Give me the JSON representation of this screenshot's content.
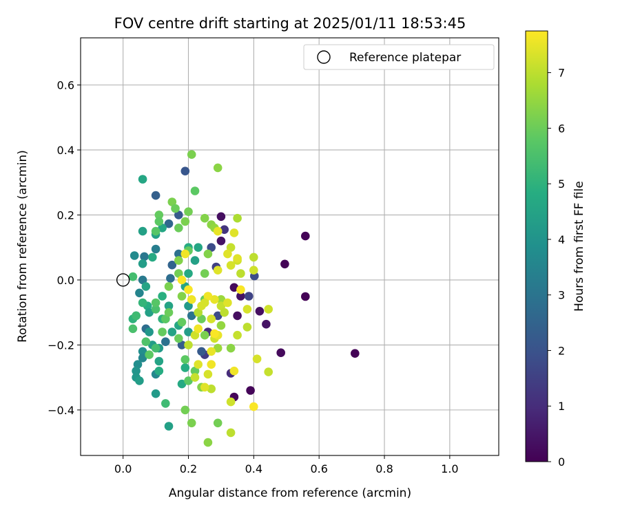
{
  "chart_data": {
    "type": "scatter",
    "title": "FOV centre drift starting at 2025/01/11 18:53:45",
    "xlabel": "Angular distance from reference (arcmin)",
    "ylabel": "Rotation from reference (arcmin)",
    "xlim": [
      -0.13,
      1.15
    ],
    "ylim": [
      -0.54,
      0.745
    ],
    "xticks": [
      0.0,
      0.2,
      0.4,
      0.6,
      0.8,
      1.0
    ],
    "xtick_labels": [
      "0.0",
      "0.2",
      "0.4",
      "0.6",
      "0.8",
      "1.0"
    ],
    "yticks": [
      -0.4,
      -0.2,
      0.0,
      0.2,
      0.4,
      0.6
    ],
    "ytick_labels": [
      "−0.4",
      "−0.2",
      "0.0",
      "0.2",
      "0.4",
      "0.6"
    ],
    "grid": true,
    "legend": {
      "position": "top-right",
      "label": "Reference platepar"
    },
    "reference_point": {
      "x": 0.0,
      "y": 0.0
    },
    "colorbar": {
      "label": "Hours from first FF file",
      "min": 0,
      "max": 7.75,
      "ticks": [
        0,
        1,
        2,
        3,
        4,
        5,
        6,
        7
      ],
      "tick_labels": [
        "0",
        "1",
        "2",
        "3",
        "4",
        "5",
        "6",
        "7"
      ],
      "colormap": "viridis"
    },
    "points": [
      [
        0.71,
        -0.226,
        0.05
      ],
      [
        0.558,
        0.135,
        0.05
      ],
      [
        0.558,
        -0.051,
        0.05
      ],
      [
        0.495,
        0.049,
        0.05
      ],
      [
        0.483,
        -0.224,
        0.2
      ],
      [
        0.418,
        -0.096,
        0.3
      ],
      [
        0.438,
        -0.136,
        0.4
      ],
      [
        0.39,
        -0.34,
        0.1
      ],
      [
        0.34,
        -0.36,
        0.1
      ],
      [
        0.34,
        -0.023,
        0.2
      ],
      [
        0.36,
        -0.05,
        0.4
      ],
      [
        0.3,
        0.195,
        0.3
      ],
      [
        0.31,
        0.155,
        1.2
      ],
      [
        0.3,
        0.12,
        0.4
      ],
      [
        0.35,
        -0.11,
        0.3
      ],
      [
        0.33,
        -0.287,
        1.0
      ],
      [
        0.385,
        -0.05,
        1.6
      ],
      [
        0.402,
        0.012,
        1.8
      ],
      [
        0.285,
        0.04,
        1.5
      ],
      [
        0.27,
        0.1,
        1.8
      ],
      [
        0.26,
        -0.16,
        1.0
      ],
      [
        0.29,
        -0.11,
        1.8
      ],
      [
        0.25,
        -0.23,
        1.4
      ],
      [
        0.24,
        -0.22,
        2.2
      ],
      [
        0.19,
        0.335,
        2.1
      ],
      [
        0.1,
        0.26,
        2.4
      ],
      [
        0.14,
        0.173,
        2.6
      ],
      [
        0.17,
        0.2,
        2.2
      ],
      [
        0.15,
        0.046,
        2.5
      ],
      [
        0.145,
        0.005,
        2.8
      ],
      [
        0.13,
        -0.12,
        2.8
      ],
      [
        0.13,
        -0.19,
        2.9
      ],
      [
        0.18,
        -0.2,
        2.3
      ],
      [
        0.17,
        0.08,
        2.9
      ],
      [
        0.21,
        -0.11,
        3.0
      ],
      [
        0.07,
        -0.15,
        2.8
      ],
      [
        0.06,
        0.0,
        3.2
      ],
      [
        0.065,
        0.072,
        3.1
      ],
      [
        0.1,
        0.095,
        3.3
      ],
      [
        0.05,
        -0.04,
        3.5
      ],
      [
        0.035,
        0.075,
        3.7
      ],
      [
        0.04,
        -0.11,
        3.6
      ],
      [
        0.06,
        -0.22,
        3.8
      ],
      [
        0.06,
        -0.24,
        3.6
      ],
      [
        0.045,
        -0.26,
        3.8
      ],
      [
        0.04,
        -0.28,
        4.0
      ],
      [
        0.04,
        -0.3,
        4.1
      ],
      [
        0.05,
        -0.31,
        4.3
      ],
      [
        0.1,
        -0.29,
        3.6
      ],
      [
        0.1,
        -0.35,
        4.2
      ],
      [
        0.06,
        0.31,
        4.6
      ],
      [
        0.06,
        0.15,
        4.4
      ],
      [
        0.06,
        0.05,
        4.3
      ],
      [
        0.1,
        0.14,
        4.4
      ],
      [
        0.12,
        0.16,
        4.6
      ],
      [
        0.09,
        0.07,
        4.7
      ],
      [
        0.07,
        -0.02,
        4.5
      ],
      [
        0.075,
        -0.08,
        4.8
      ],
      [
        0.08,
        -0.1,
        4.4
      ],
      [
        0.08,
        -0.16,
        4.1
      ],
      [
        0.09,
        -0.2,
        4.3
      ],
      [
        0.11,
        -0.21,
        4.2
      ],
      [
        0.11,
        -0.25,
        4.5
      ],
      [
        0.11,
        -0.28,
        4.8
      ],
      [
        0.13,
        -0.38,
        5.3
      ],
      [
        0.14,
        -0.45,
        4.4
      ],
      [
        0.18,
        -0.32,
        4.7
      ],
      [
        0.19,
        -0.27,
        4.8
      ],
      [
        0.2,
        -0.16,
        4.3
      ],
      [
        0.2,
        -0.08,
        4.2
      ],
      [
        0.19,
        -0.02,
        4.5
      ],
      [
        0.2,
        0.02,
        4.7
      ],
      [
        0.22,
        0.06,
        4.4
      ],
      [
        0.2,
        0.1,
        4.8
      ],
      [
        0.23,
        0.1,
        4.6
      ],
      [
        0.17,
        -0.14,
        4.6
      ],
      [
        0.14,
        -0.08,
        4.5
      ],
      [
        0.12,
        -0.05,
        4.9
      ],
      [
        0.15,
        -0.16,
        4.5
      ],
      [
        0.12,
        -0.12,
        5.0
      ],
      [
        0.03,
        -0.12,
        5.0
      ],
      [
        0.03,
        0.01,
        5.4
      ],
      [
        0.03,
        -0.15,
        5.5
      ],
      [
        0.04,
        -0.11,
        5.3
      ],
      [
        0.06,
        -0.07,
        5.1
      ],
      [
        0.07,
        -0.19,
        5.6
      ],
      [
        0.08,
        -0.23,
        5.8
      ],
      [
        0.1,
        -0.21,
        5.4
      ],
      [
        0.1,
        -0.09,
        5.5
      ],
      [
        0.1,
        -0.07,
        5.7
      ],
      [
        0.1,
        0.15,
        5.7
      ],
      [
        0.11,
        0.2,
        5.9
      ],
      [
        0.11,
        0.18,
        5.8
      ],
      [
        0.12,
        -0.16,
        5.9
      ],
      [
        0.13,
        -0.12,
        5.8
      ],
      [
        0.14,
        -0.02,
        6.2
      ],
      [
        0.14,
        -0.1,
        6.0
      ],
      [
        0.15,
        0.24,
        6.2
      ],
      [
        0.16,
        0.22,
        6.0
      ],
      [
        0.17,
        0.16,
        6.0
      ],
      [
        0.19,
        0.18,
        6.2
      ],
      [
        0.2,
        0.21,
        6.1
      ],
      [
        0.21,
        0.386,
        6.2
      ],
      [
        0.22,
        0.274,
        5.8
      ],
      [
        0.2,
        0.09,
        5.9
      ],
      [
        0.17,
        0.06,
        6.3
      ],
      [
        0.17,
        0.02,
        6.1
      ],
      [
        0.18,
        -0.05,
        6.3
      ],
      [
        0.18,
        -0.13,
        5.9
      ],
      [
        0.17,
        -0.18,
        6.0
      ],
      [
        0.19,
        -0.4,
        6.1
      ],
      [
        0.21,
        -0.44,
        6.2
      ],
      [
        0.26,
        -0.5,
        6.4
      ],
      [
        0.29,
        -0.44,
        6.1
      ],
      [
        0.19,
        -0.245,
        5.8
      ],
      [
        0.2,
        -0.31,
        5.8
      ],
      [
        0.22,
        -0.28,
        5.9
      ],
      [
        0.24,
        -0.33,
        6.3
      ],
      [
        0.25,
        -0.17,
        6.2
      ],
      [
        0.24,
        -0.12,
        6.0
      ],
      [
        0.25,
        -0.06,
        5.9
      ],
      [
        0.25,
        0.02,
        6.1
      ],
      [
        0.26,
        0.08,
        6.3
      ],
      [
        0.27,
        0.17,
        6.4
      ],
      [
        0.25,
        0.19,
        6.3
      ],
      [
        0.28,
        0.16,
        6.5
      ],
      [
        0.29,
        0.345,
        6.4
      ],
      [
        0.3,
        -0.06,
        6.6
      ],
      [
        0.3,
        -0.14,
        6.5
      ],
      [
        0.29,
        -0.21,
        6.6
      ],
      [
        0.33,
        -0.21,
        6.4
      ],
      [
        0.35,
        0.19,
        6.8
      ],
      [
        0.34,
        0.145,
        7.4
      ],
      [
        0.33,
        0.1,
        7.1
      ],
      [
        0.32,
        0.08,
        7.4
      ],
      [
        0.35,
        0.06,
        7.2
      ],
      [
        0.36,
        0.02,
        7.0
      ],
      [
        0.33,
        0.045,
        7.3
      ],
      [
        0.3,
        -0.08,
        7.1
      ],
      [
        0.32,
        -0.07,
        7.4
      ],
      [
        0.31,
        -0.1,
        7.0
      ],
      [
        0.27,
        -0.12,
        7.3
      ],
      [
        0.28,
        -0.06,
        7.5
      ],
      [
        0.26,
        -0.05,
        7.6
      ],
      [
        0.25,
        -0.07,
        7.3
      ],
      [
        0.23,
        -0.1,
        6.9
      ],
      [
        0.22,
        -0.17,
        7.2
      ],
      [
        0.2,
        -0.2,
        7.0
      ],
      [
        0.22,
        -0.3,
        7.1
      ],
      [
        0.23,
        -0.26,
        7.4
      ],
      [
        0.26,
        -0.29,
        7.3
      ],
      [
        0.27,
        -0.335,
        7.0
      ],
      [
        0.25,
        -0.33,
        7.4
      ],
      [
        0.27,
        -0.26,
        7.6
      ],
      [
        0.28,
        -0.18,
        7.2
      ],
      [
        0.29,
        -0.17,
        7.5
      ],
      [
        0.34,
        -0.28,
        7.6
      ],
      [
        0.33,
        -0.375,
        7.2
      ],
      [
        0.33,
        -0.47,
        7.0
      ],
      [
        0.35,
        -0.17,
        7.1
      ],
      [
        0.38,
        -0.09,
        7.3
      ],
      [
        0.38,
        -0.145,
        7.0
      ],
      [
        0.4,
        0.07,
        7.0
      ],
      [
        0.4,
        0.03,
        7.2
      ],
      [
        0.41,
        -0.243,
        7.3
      ],
      [
        0.445,
        -0.283,
        7.1
      ],
      [
        0.445,
        -0.09,
        7.2
      ],
      [
        0.4,
        -0.39,
        7.7
      ],
      [
        0.35,
        0.066,
        7.4
      ],
      [
        0.21,
        -0.06,
        7.6
      ],
      [
        0.19,
        0.08,
        7.6
      ],
      [
        0.2,
        -0.03,
        7.7
      ],
      [
        0.18,
        0.0,
        7.7
      ],
      [
        0.36,
        -0.03,
        7.7
      ],
      [
        0.28,
        -0.165,
        7.7
      ],
      [
        0.29,
        0.15,
        7.5
      ],
      [
        0.29,
        0.03,
        7.4
      ],
      [
        0.27,
        -0.22,
        7.5
      ],
      [
        0.23,
        -0.15,
        7.6
      ],
      [
        0.24,
        -0.08,
        7.3
      ]
    ]
  }
}
